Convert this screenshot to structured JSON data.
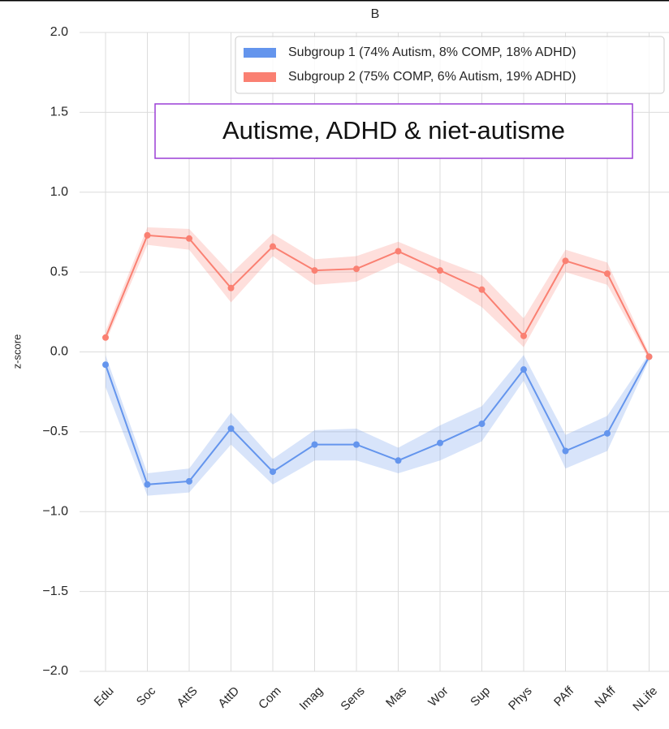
{
  "chart_data": {
    "type": "line",
    "title": "B",
    "ylabel": "z-score",
    "annotation": "Autisme, ADHD & niet-autisme",
    "categories": [
      "Edu",
      "Soc",
      "AttS",
      "AttD",
      "Com",
      "Imag",
      "Sens",
      "Mas",
      "Wor",
      "Sup",
      "Phys",
      "PAff",
      "NAff",
      "NLife"
    ],
    "series": [
      {
        "name": "Subgroup 1 (74% Autism, 8% COMP, 18% ADHD)",
        "color": "#6495ed",
        "values": [
          -0.08,
          -0.83,
          -0.81,
          -0.48,
          -0.75,
          -0.58,
          -0.58,
          -0.68,
          -0.57,
          -0.45,
          -0.11,
          -0.62,
          -0.51,
          -0.03
        ],
        "ci_lower": [
          -0.22,
          -0.9,
          -0.88,
          -0.58,
          -0.83,
          -0.68,
          -0.68,
          -0.76,
          -0.68,
          -0.56,
          -0.18,
          -0.73,
          -0.62,
          -0.05
        ],
        "ci_upper": [
          -0.02,
          -0.76,
          -0.73,
          -0.38,
          -0.67,
          -0.49,
          -0.48,
          -0.6,
          -0.46,
          -0.34,
          -0.02,
          -0.52,
          -0.4,
          -0.01
        ]
      },
      {
        "name": "Subgroup 2 (75% COMP, 6% Autism, 19% ADHD)",
        "color": "#fa8072",
        "values": [
          0.09,
          0.73,
          0.71,
          0.4,
          0.66,
          0.51,
          0.52,
          0.63,
          0.51,
          0.39,
          0.1,
          0.57,
          0.49,
          -0.03
        ],
        "ci_lower": [
          0.06,
          0.67,
          0.64,
          0.31,
          0.6,
          0.42,
          0.44,
          0.56,
          0.44,
          0.28,
          0.03,
          0.5,
          0.42,
          -0.05
        ],
        "ci_upper": [
          0.13,
          0.78,
          0.77,
          0.49,
          0.74,
          0.58,
          0.6,
          0.69,
          0.58,
          0.48,
          0.21,
          0.64,
          0.56,
          -0.01
        ]
      }
    ],
    "ylim": [
      -2,
      2
    ],
    "yticks": [
      {
        "value": -2,
        "label": "−2.0"
      },
      {
        "value": -1.5,
        "label": "−1.5"
      },
      {
        "value": -1,
        "label": "−1.0"
      },
      {
        "value": -0.5,
        "label": "−0.5"
      },
      {
        "value": 0,
        "label": "0.0"
      },
      {
        "value": 0.5,
        "label": "0.5"
      },
      {
        "value": 1,
        "label": "1.0"
      },
      {
        "value": 1.5,
        "label": "1.5"
      },
      {
        "value": 2,
        "label": "2.0"
      }
    ],
    "grid": true,
    "legend": "upper right"
  }
}
